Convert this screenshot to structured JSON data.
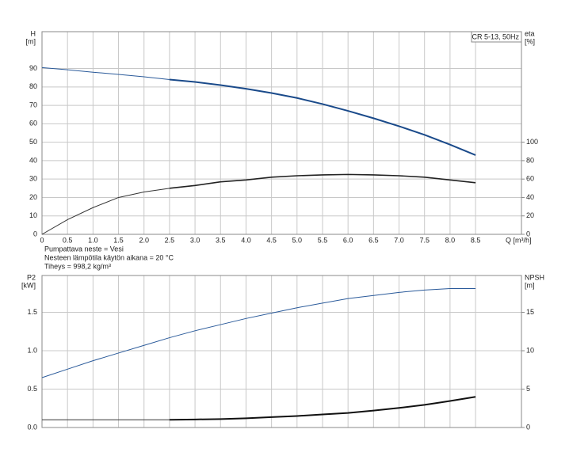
{
  "chart_data": [
    {
      "type": "line",
      "title": "CR 5-13, 50Hz",
      "ylabel": [
        "H",
        "[m]"
      ],
      "y2label": [
        "eta",
        "[%]"
      ],
      "xlabel": "Q [m³/h]",
      "notes": [
        "Pumpattava neste = Vesi",
        "Nesteen lämpötila käytön aikana = 20 °C",
        "Tiheys = 998,2 kg/m³"
      ],
      "x": [
        0,
        0.5,
        1,
        1.5,
        2,
        2.5,
        3,
        3.5,
        4,
        4.5,
        5,
        5.5,
        6,
        6.5,
        7,
        7.5,
        8,
        8.5
      ],
      "xlim": [
        0,
        9.4
      ],
      "xticks": [
        0,
        0.5,
        {
          "value": 1,
          "label": "1.0"
        },
        1.5,
        {
          "value": 2,
          "label": "2.0"
        },
        2.5,
        {
          "value": 3,
          "label": "3.0"
        },
        3.5,
        {
          "value": 4,
          "label": "4.0"
        },
        4.5,
        {
          "value": 5,
          "label": "5.0"
        },
        5.5,
        {
          "value": 6,
          "label": "6.0"
        },
        6.5,
        {
          "value": 7,
          "label": "7.0"
        },
        7.5,
        {
          "value": 8,
          "label": "8.0"
        },
        8.5
      ],
      "ylim": [
        0,
        110
      ],
      "yticks": [
        0,
        10,
        20,
        30,
        40,
        50,
        60,
        70,
        80,
        90
      ],
      "y2lim": [
        0,
        220
      ],
      "y2ticks": [
        0,
        20,
        40,
        60,
        80,
        100
      ],
      "grid": true,
      "series": [
        {
          "color": "#2a5a9a",
          "linewidth": 1,
          "values": [
            90.5,
            89.3,
            88,
            86.8,
            85.5,
            84,
            null,
            null,
            null,
            null,
            null,
            null,
            null,
            null,
            null,
            null,
            null,
            null
          ]
        },
        {
          "color": "#1a4a8a",
          "linewidth": 2,
          "values": [
            null,
            null,
            null,
            null,
            null,
            84,
            82.7,
            81,
            79,
            76.7,
            74,
            70.7,
            67,
            63,
            58.7,
            54,
            48.7,
            43
          ]
        },
        {
          "color": "#333333",
          "linewidth": 1,
          "axis": "y2",
          "values": [
            0,
            16,
            29,
            40,
            46,
            50,
            null,
            null,
            null,
            null,
            null,
            null,
            null,
            null,
            null,
            null,
            null,
            null
          ]
        },
        {
          "color": "#222222",
          "linewidth": 1.6,
          "axis": "y2",
          "values": [
            null,
            null,
            null,
            null,
            null,
            50,
            53,
            57,
            59,
            62,
            63.6,
            64.5,
            65,
            64.5,
            63.6,
            62,
            59,
            56
          ]
        }
      ]
    },
    {
      "type": "line",
      "ylabel": [
        "P2",
        "[kW]"
      ],
      "y2label": [
        "NPSH",
        "[m]"
      ],
      "x": [
        0,
        0.5,
        1,
        1.5,
        2,
        2.5,
        3,
        3.5,
        4,
        4.5,
        5,
        5.5,
        6,
        6.5,
        7,
        7.5,
        8,
        8.5
      ],
      "xlim": [
        0,
        9.4
      ],
      "ylim": [
        0,
        1.98
      ],
      "yticks": [
        {
          "value": 0,
          "label": "0.0"
        },
        0.5,
        {
          "value": 1,
          "label": "1.0"
        },
        1.5
      ],
      "y2lim": [
        0,
        19.8
      ],
      "y2ticks": [
        0,
        5,
        10,
        15
      ],
      "grid": true,
      "series": [
        {
          "color": "#2a5a9a",
          "linewidth": 1,
          "values": [
            0.65,
            0.76,
            0.87,
            0.97,
            1.07,
            1.17,
            1.26,
            1.34,
            1.42,
            1.49,
            1.56,
            1.62,
            1.68,
            1.72,
            1.76,
            1.79,
            1.81,
            1.81
          ]
        },
        {
          "color": "#333333",
          "linewidth": 1,
          "axis": "y2",
          "values": [
            1,
            1,
            1,
            1,
            1,
            1,
            null,
            null,
            null,
            null,
            null,
            null,
            null,
            null,
            null,
            null,
            null,
            null
          ]
        },
        {
          "color": "#111111",
          "linewidth": 2,
          "axis": "y2",
          "values": [
            null,
            null,
            null,
            null,
            null,
            1,
            1.05,
            1.1,
            1.2,
            1.35,
            1.5,
            1.7,
            1.9,
            2.2,
            2.55,
            2.95,
            3.45,
            4
          ]
        }
      ]
    }
  ]
}
